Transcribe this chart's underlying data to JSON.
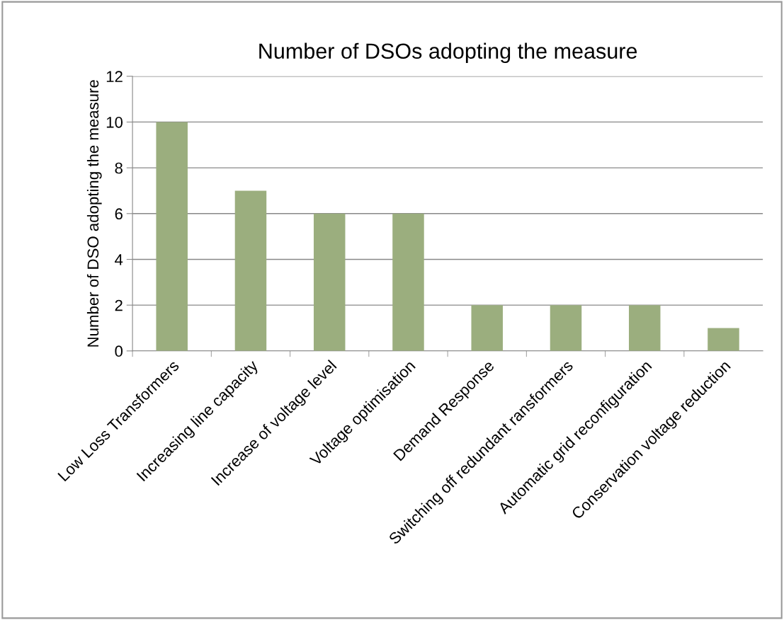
{
  "chart_data": {
    "type": "bar",
    "title": "Number of DSOs adopting the measure",
    "ylabel": "Number of DSO adopting the measure",
    "categories": [
      "Low Loss Transformers",
      "Increasing line capacity",
      "Increase of voltage level",
      "Voltage optimisation",
      "Demand Response",
      "Switching off redundant ransformers",
      "Automatic grid reconfiguration",
      "Conservation voltage reduction"
    ],
    "values": [
      10,
      7,
      6,
      6,
      2,
      2,
      2,
      1
    ],
    "color": "#9bae7e",
    "ylim": [
      0,
      12
    ],
    "yticks": [
      0,
      2,
      4,
      6,
      8,
      10,
      12
    ],
    "grid": "y",
    "legend": false
  }
}
